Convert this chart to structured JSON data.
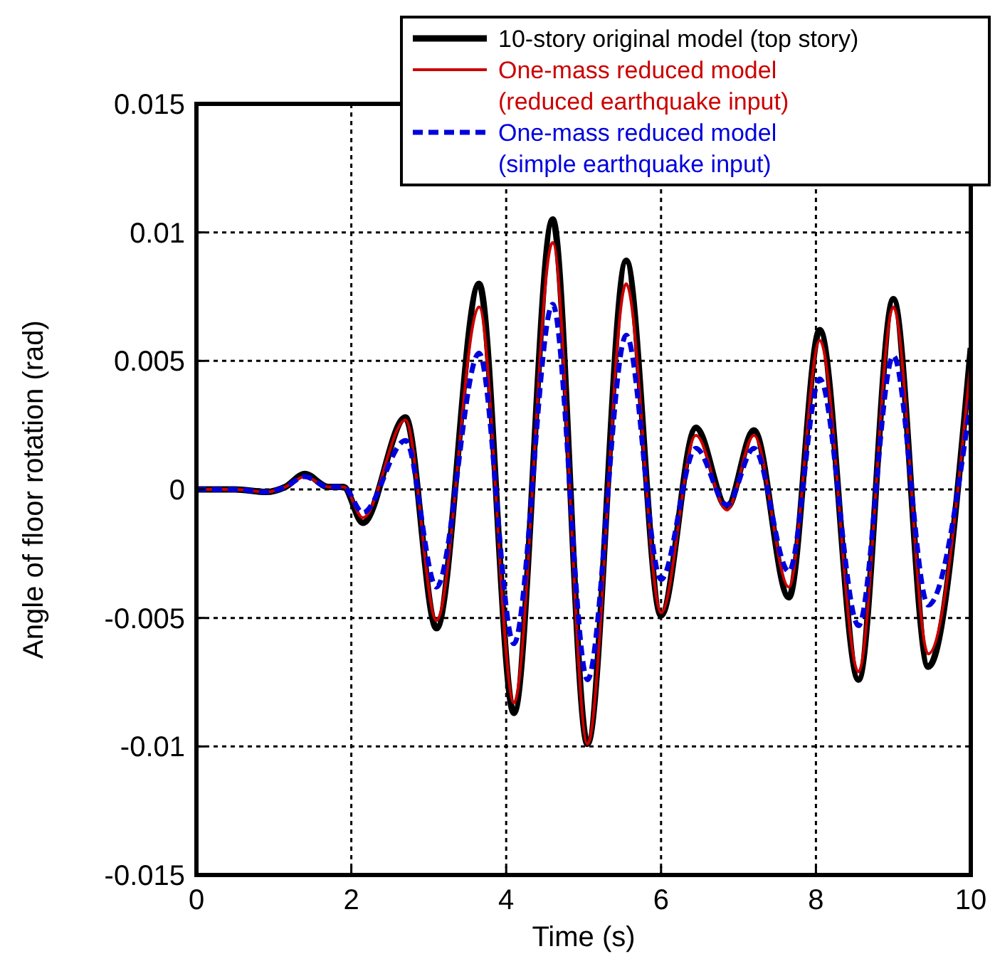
{
  "chart_data": {
    "type": "line",
    "xlabel": "Time (s)",
    "ylabel": "Angle of floor rotation (rad)",
    "xlim": [
      0,
      10
    ],
    "ylim": [
      -0.015,
      0.015
    ],
    "xticks": [
      0,
      2,
      4,
      6,
      8,
      10
    ],
    "yticks": [
      -0.015,
      -0.01,
      -0.005,
      0,
      0.005,
      0.01,
      0.015
    ],
    "grid": true,
    "legend": "top right",
    "marker": "none",
    "series": [
      {
        "name": "10-story original model (top story)",
        "color": "#000000",
        "line_style": "solid",
        "x": [
          0,
          0.5,
          0.9,
          1.15,
          1.4,
          1.7,
          1.9,
          2.15,
          2.7,
          3.1,
          3.65,
          4.1,
          4.6,
          5.05,
          5.55,
          6.0,
          6.45,
          6.85,
          7.2,
          7.65,
          8.05,
          8.55,
          9.0,
          9.45,
          10
        ],
        "values": [
          0,
          0,
          -0.0001,
          0.0001,
          0.0006,
          0.0001,
          0.0001,
          -0.0013,
          0.0028,
          -0.0054,
          0.008,
          -0.0087,
          0.0105,
          -0.0099,
          0.0089,
          -0.0049,
          0.0024,
          -0.0007,
          0.0023,
          -0.0042,
          0.0062,
          -0.0074,
          0.0074,
          -0.0069,
          0.0055
        ]
      },
      {
        "name": "One-mass reduced model\n(reduced earthquake input)",
        "color": "#cc0000",
        "line_style": "solid",
        "x": [
          0,
          0.5,
          0.9,
          1.15,
          1.4,
          1.7,
          1.9,
          2.15,
          2.7,
          3.1,
          3.65,
          4.1,
          4.6,
          5.05,
          5.55,
          6.0,
          6.45,
          6.85,
          7.2,
          7.65,
          8.05,
          8.55,
          9.0,
          9.45,
          10
        ],
        "values": [
          0,
          0,
          -0.0001,
          0.0001,
          0.0005,
          0.0001,
          0.0001,
          -0.0011,
          0.0027,
          -0.0051,
          0.0071,
          -0.0083,
          0.0096,
          -0.0099,
          0.008,
          -0.0048,
          0.0021,
          -0.0008,
          0.0021,
          -0.0038,
          0.0058,
          -0.0071,
          0.0071,
          -0.0064,
          0.005
        ]
      },
      {
        "name": "One-mass reduced model\n(simple earthquake input)",
        "color": "#0000dd",
        "line_style": "dashed",
        "x": [
          0,
          0.5,
          0.9,
          1.15,
          1.4,
          1.7,
          1.9,
          2.15,
          2.7,
          3.1,
          3.65,
          4.1,
          4.6,
          5.05,
          5.55,
          6.0,
          6.45,
          6.85,
          7.2,
          7.65,
          8.05,
          8.55,
          9.0,
          9.45,
          10
        ],
        "values": [
          0,
          0,
          -0.0001,
          0.0001,
          0.0005,
          0.0001,
          0.0001,
          -0.0009,
          0.0019,
          -0.0038,
          0.0053,
          -0.006,
          0.0072,
          -0.0074,
          0.006,
          -0.0035,
          0.0016,
          -0.0006,
          0.0016,
          -0.0032,
          0.0043,
          -0.0053,
          0.0052,
          -0.0045,
          0.0035
        ]
      }
    ]
  }
}
